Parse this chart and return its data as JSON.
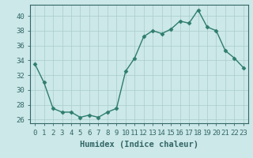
{
  "title": "",
  "xlabel": "Humidex (Indice chaleur)",
  "ylabel": "",
  "x": [
    0,
    1,
    2,
    3,
    4,
    5,
    6,
    7,
    8,
    9,
    10,
    11,
    12,
    13,
    14,
    15,
    16,
    17,
    18,
    19,
    20,
    21,
    22,
    23
  ],
  "y": [
    33.5,
    31.0,
    27.5,
    27.0,
    27.0,
    26.3,
    26.6,
    26.3,
    27.0,
    27.5,
    32.5,
    34.3,
    37.2,
    38.0,
    37.6,
    38.2,
    39.3,
    39.0,
    40.8,
    38.5,
    38.0,
    35.3,
    34.3,
    33.0
  ],
  "line_color": "#2e7d6e",
  "marker": "D",
  "marker_size": 2.5,
  "bg_color": "#cce8e8",
  "grid_color": "#aacccc",
  "ylim": [
    25.5,
    41.5
  ],
  "yticks": [
    26,
    28,
    30,
    32,
    34,
    36,
    38,
    40
  ],
  "xlim": [
    -0.5,
    23.5
  ],
  "xticks": [
    0,
    1,
    2,
    3,
    4,
    5,
    6,
    7,
    8,
    9,
    10,
    11,
    12,
    13,
    14,
    15,
    16,
    17,
    18,
    19,
    20,
    21,
    22,
    23
  ],
  "tick_label_size": 6.5,
  "xlabel_size": 7.5,
  "axis_color": "#336666",
  "linewidth": 1.0
}
